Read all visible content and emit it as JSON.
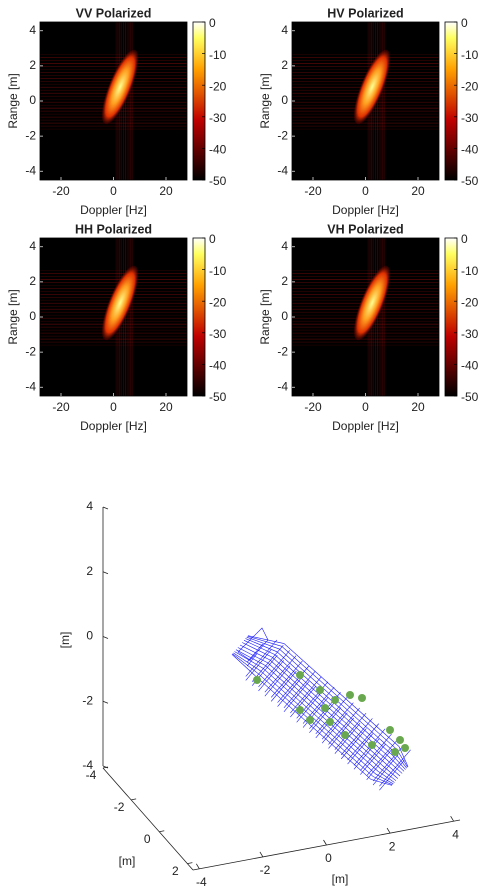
{
  "chart_data": [
    {
      "type": "heatmap",
      "title": "VV Polarized",
      "xlabel": "Doppler [Hz]",
      "ylabel": "Range [m]",
      "xlim": [
        -28,
        28
      ],
      "xticks": [
        -20,
        0,
        20
      ],
      "ylim": [
        -4.5,
        4.5
      ],
      "yticks": [
        -4,
        -2,
        0,
        2,
        4
      ],
      "clim": [
        -50,
        0
      ],
      "cticks": [
        0,
        -10,
        -20,
        -30,
        -40,
        -50
      ],
      "colormap": "hot"
    },
    {
      "type": "heatmap",
      "title": "HV Polarized",
      "xlabel": "Doppler [Hz]",
      "ylabel": "Range [m]",
      "xlim": [
        -28,
        28
      ],
      "xticks": [
        -20,
        0,
        20
      ],
      "ylim": [
        -4.5,
        4.5
      ],
      "yticks": [
        -4,
        -2,
        0,
        2,
        4
      ],
      "clim": [
        -50,
        0
      ],
      "cticks": [
        0,
        -10,
        -20,
        -30,
        -40,
        -50
      ],
      "colormap": "hot"
    },
    {
      "type": "heatmap",
      "title": "HH Polarized",
      "xlabel": "Doppler [Hz]",
      "ylabel": "Range [m]",
      "xlim": [
        -28,
        28
      ],
      "xticks": [
        -20,
        0,
        20
      ],
      "ylim": [
        -4.5,
        4.5
      ],
      "yticks": [
        -4,
        -2,
        0,
        2,
        4
      ],
      "clim": [
        -50,
        0
      ],
      "cticks": [
        0,
        -10,
        -20,
        -30,
        -40,
        -50
      ],
      "colormap": "hot"
    },
    {
      "type": "heatmap",
      "title": "VH Polarized",
      "xlabel": "Doppler [Hz]",
      "ylabel": "Range [m]",
      "xlim": [
        -28,
        28
      ],
      "xticks": [
        -20,
        0,
        20
      ],
      "ylim": [
        -4.5,
        4.5
      ],
      "yticks": [
        -4,
        -2,
        0,
        2,
        4
      ],
      "clim": [
        -50,
        0
      ],
      "cticks": [
        0,
        -10,
        -20,
        -30,
        -40,
        -50
      ],
      "colormap": "hot"
    },
    {
      "type": "wireframe3d",
      "xlabel": "[m]",
      "ylabel": "[m]",
      "zlabel": "[m]",
      "xlim": [
        -4.2,
        4.2
      ],
      "xticks": [
        -4,
        -2,
        0,
        2,
        4
      ],
      "ylim": [
        -4,
        2.4
      ],
      "yticks": [
        -4,
        -2,
        0,
        2
      ],
      "zlim": [
        -4,
        4
      ],
      "zticks": [
        -4,
        -2,
        0,
        2,
        4
      ],
      "color": "#1a1aff",
      "marker_color": "#6aa84f"
    }
  ]
}
